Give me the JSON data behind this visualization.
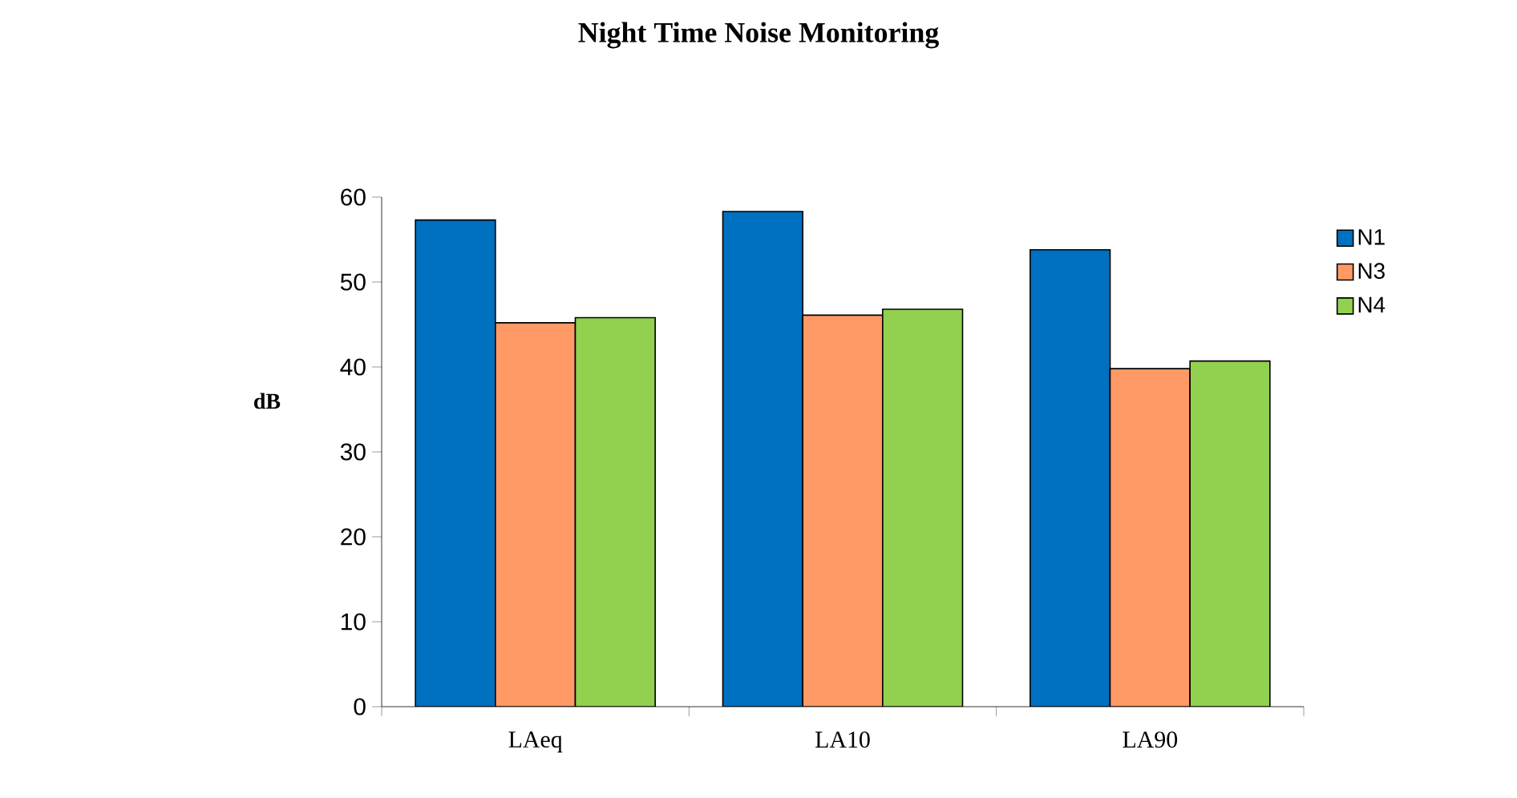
{
  "chart_data": {
    "type": "bar",
    "title": "Night Time Noise Monitoring",
    "ylabel": "dB",
    "categories": [
      "LAeq",
      "LA10",
      "LA90"
    ],
    "series": [
      {
        "name": "N1",
        "color": "#0070c0",
        "values": [
          57.3,
          58.3,
          53.8
        ]
      },
      {
        "name": "N3",
        "color": "#ff9966",
        "values": [
          45.2,
          46.1,
          39.8
        ]
      },
      {
        "name": "N4",
        "color": "#92d050",
        "values": [
          45.8,
          46.8,
          40.7
        ]
      }
    ],
    "ylim": [
      0,
      60
    ],
    "yticks": [
      0,
      10,
      20,
      30,
      40,
      50,
      60
    ],
    "legend": "right"
  }
}
